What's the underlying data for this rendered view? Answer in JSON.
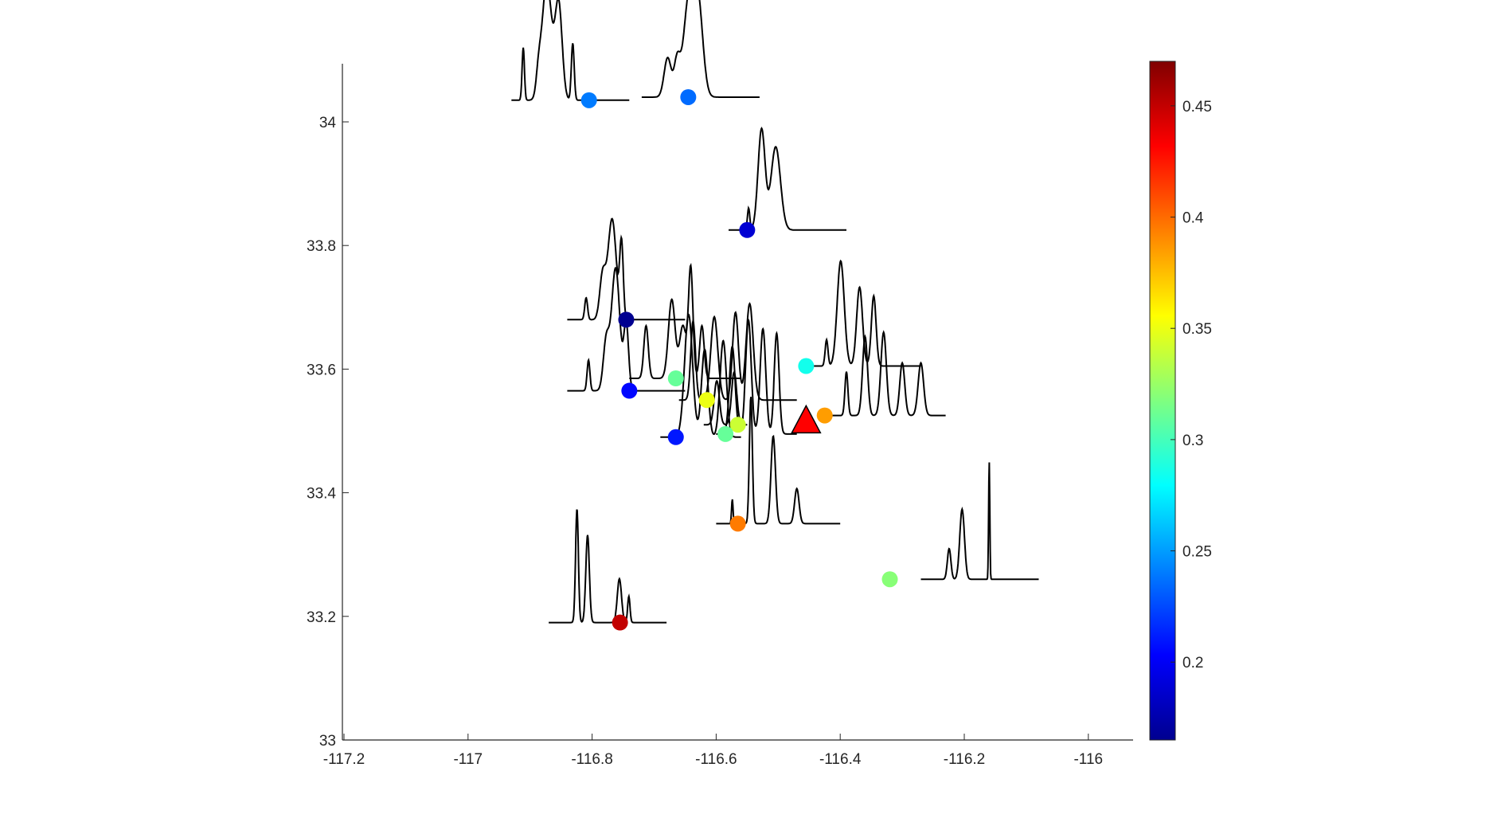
{
  "chart_data": {
    "type": "scatter",
    "title": "",
    "xlabel": "",
    "ylabel": "",
    "xlim": [
      -117.2,
      -115.95
    ],
    "ylim": [
      33.0,
      34.1
    ],
    "xticks": [
      -117.2,
      -117,
      -116.8,
      -116.6,
      -116.4,
      -116.2,
      -116
    ],
    "xtick_labels": [
      "-117.2",
      "-117",
      "-116.8",
      "-116.6",
      "-116.4",
      "-116.2",
      "-116"
    ],
    "yticks": [
      33,
      33.2,
      33.4,
      33.6,
      33.8,
      34
    ],
    "ytick_labels": [
      "33",
      "33.2",
      "33.4",
      "33.6",
      "33.8",
      "34"
    ],
    "grid": false,
    "colormap": "jet",
    "colorbar": {
      "range": [
        0.165,
        0.47
      ],
      "ticks": [
        0.2,
        0.25,
        0.3,
        0.35,
        0.4,
        0.45
      ],
      "tick_labels": [
        "0.2",
        "0.25",
        "0.3",
        "0.35",
        "0.4",
        "0.45"
      ]
    },
    "reference_marker": {
      "shape": "triangle",
      "color": "#ff0000",
      "x": -116.455,
      "y": 33.515
    },
    "stations": [
      {
        "x": -116.805,
        "y": 34.035,
        "value": 0.24,
        "trace": {
          "x0": -116.93,
          "x1": -116.74,
          "y": 34.035,
          "peaks": [
            [
              0.1,
              0.6,
              0.01
            ],
            [
              0.23,
              0.25,
              0.02
            ],
            [
              0.3,
              1.35,
              0.04
            ],
            [
              0.4,
              1.1,
              0.03
            ],
            [
              0.52,
              0.65,
              0.012
            ]
          ]
        }
      },
      {
        "x": -116.645,
        "y": 34.04,
        "value": 0.235,
        "trace": {
          "x0": -116.72,
          "x1": -116.53,
          "y": 34.04,
          "peaks": [
            [
              0.22,
              0.45,
              0.03
            ],
            [
              0.3,
              0.4,
              0.025
            ],
            [
              0.4,
              1.1,
              0.045
            ],
            [
              0.48,
              1.0,
              0.04
            ]
          ]
        }
      },
      {
        "x": -116.55,
        "y": 33.825,
        "value": 0.19,
        "trace": {
          "x0": -116.58,
          "x1": -116.39,
          "y": 33.825,
          "peaks": [
            [
              0.17,
              0.25,
              0.01
            ],
            [
              0.28,
              1.15,
              0.03
            ],
            [
              0.4,
              0.95,
              0.04
            ]
          ]
        }
      },
      {
        "x": -116.745,
        "y": 33.68,
        "value": 0.17,
        "trace": {
          "x0": -116.84,
          "x1": -116.65,
          "y": 33.68,
          "peaks": [
            [
              0.16,
              0.25,
              0.012
            ],
            [
              0.3,
              0.5,
              0.025
            ],
            [
              0.38,
              1.15,
              0.035
            ],
            [
              0.46,
              0.85,
              0.015
            ]
          ]
        }
      },
      {
        "x": -116.74,
        "y": 33.565,
        "value": 0.205,
        "trace": {
          "x0": -116.84,
          "x1": -116.65,
          "y": 33.565,
          "peaks": [
            [
              0.18,
              0.35,
              0.012
            ],
            [
              0.33,
              0.55,
              0.025
            ],
            [
              0.41,
              1.4,
              0.035
            ],
            [
              0.5,
              0.75,
              0.02
            ]
          ]
        }
      },
      {
        "x": -116.665,
        "y": 33.585,
        "value": 0.31,
        "trace": {
          "x0": -116.74,
          "x1": -116.56,
          "y": 33.585,
          "peaks": [
            [
              0.15,
              0.6,
              0.02
            ],
            [
              0.38,
              0.9,
              0.03
            ],
            [
              0.48,
              0.6,
              0.03
            ],
            [
              0.55,
              1.25,
              0.02
            ],
            [
              0.65,
              0.6,
              0.02
            ]
          ]
        }
      },
      {
        "x": -116.615,
        "y": 33.55,
        "value": 0.35,
        "trace": {
          "x0": -116.66,
          "x1": -116.47,
          "y": 33.55,
          "peaks": [
            [
              0.12,
              0.9,
              0.02
            ],
            [
              0.3,
              0.95,
              0.03
            ],
            [
              0.48,
              1.0,
              0.025
            ],
            [
              0.6,
              1.1,
              0.03
            ]
          ]
        }
      },
      {
        "x": -116.665,
        "y": 33.49,
        "value": 0.21,
        "trace": {
          "x0": -116.69,
          "x1": -116.56,
          "y": 33.49,
          "peaks": [
            [
              0.35,
              1.4,
              0.05
            ],
            [
              0.55,
              1.0,
              0.04
            ],
            [
              0.78,
              1.1,
              0.04
            ]
          ]
        }
      },
      {
        "x": -116.565,
        "y": 33.51,
        "value": 0.34,
        "trace": {
          "x0": -116.62,
          "x1": -116.55,
          "y": 33.51,
          "peaks": [
            [
              0.3,
              0.5,
              0.06
            ],
            [
              0.7,
              0.6,
              0.06
            ]
          ]
        }
      },
      {
        "x": -116.585,
        "y": 33.495,
        "value": 0.31,
        "trace": {
          "x0": -116.6,
          "x1": -116.47,
          "y": 33.495,
          "peaks": [
            [
              0.2,
              1.0,
              0.035
            ],
            [
              0.4,
              1.3,
              0.035
            ],
            [
              0.58,
              1.2,
              0.035
            ],
            [
              0.75,
              1.15,
              0.03
            ]
          ]
        }
      },
      {
        "x": -116.455,
        "y": 33.605,
        "value": 0.285,
        "trace": {
          "x0": -116.46,
          "x1": -116.27,
          "y": 33.605,
          "peaks": [
            [
              0.2,
              0.3,
              0.012
            ],
            [
              0.32,
              1.2,
              0.03
            ],
            [
              0.48,
              0.9,
              0.025
            ],
            [
              0.6,
              0.8,
              0.02
            ]
          ]
        }
      },
      {
        "x": -116.425,
        "y": 33.525,
        "value": 0.385,
        "trace": {
          "x0": -116.43,
          "x1": -116.23,
          "y": 33.525,
          "peaks": [
            [
              0.2,
              0.5,
              0.012
            ],
            [
              0.35,
              0.9,
              0.02
            ],
            [
              0.5,
              0.95,
              0.022
            ],
            [
              0.65,
              0.6,
              0.02
            ],
            [
              0.8,
              0.6,
              0.022
            ]
          ]
        }
      },
      {
        "x": -116.565,
        "y": 33.35,
        "value": 0.395,
        "trace": {
          "x0": -116.6,
          "x1": -116.4,
          "y": 33.35,
          "peaks": [
            [
              0.13,
              0.28,
              0.006
            ],
            [
              0.28,
              1.45,
              0.012
            ],
            [
              0.46,
              1.0,
              0.018
            ],
            [
              0.65,
              0.4,
              0.018
            ]
          ]
        }
      },
      {
        "x": -116.32,
        "y": 33.26,
        "value": 0.32,
        "trace": {
          "x0": -116.27,
          "x1": -116.08,
          "y": 33.26,
          "peaks": [
            [
              0.24,
              0.35,
              0.015
            ],
            [
              0.35,
              0.8,
              0.02
            ],
            [
              0.58,
              1.35,
              0.005
            ]
          ]
        }
      },
      {
        "x": -116.755,
        "y": 33.19,
        "value": 0.45,
        "trace": {
          "x0": -116.87,
          "x1": -116.68,
          "y": 33.19,
          "peaks": [
            [
              0.24,
              1.3,
              0.012
            ],
            [
              0.33,
              1.0,
              0.015
            ],
            [
              0.6,
              0.5,
              0.018
            ],
            [
              0.68,
              0.3,
              0.01
            ]
          ]
        }
      }
    ]
  }
}
